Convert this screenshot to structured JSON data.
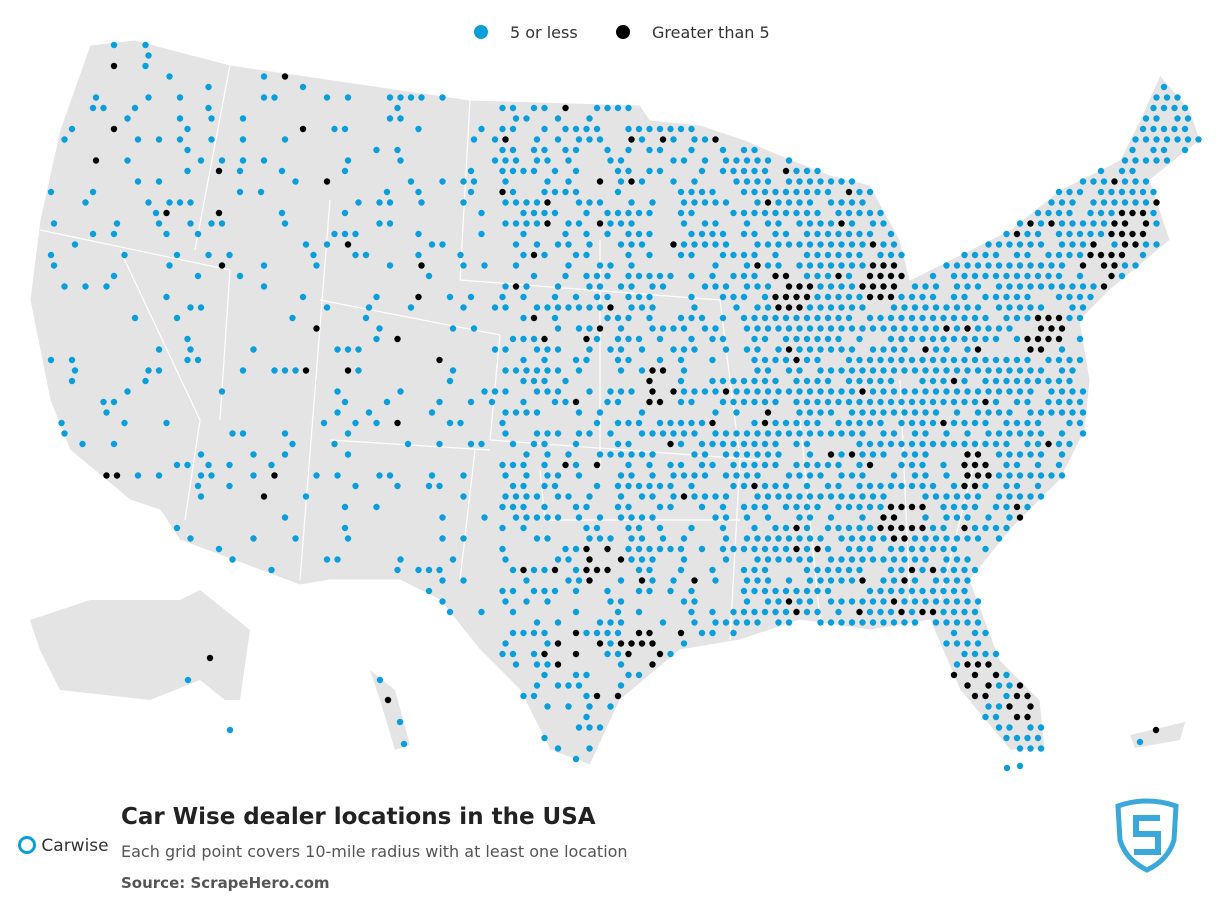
{
  "legend": [
    {
      "name": "5 or less",
      "color": "#0a9fdb"
    },
    {
      "name": "Greater than 5",
      "color": "#000000"
    }
  ],
  "title": "Car Wise dealer locations in the USA",
  "subtitle": "Each grid point covers 10-mile radius with at least one location",
  "source": "Source: ScrapeHero.com",
  "brand": "Carwise"
}
